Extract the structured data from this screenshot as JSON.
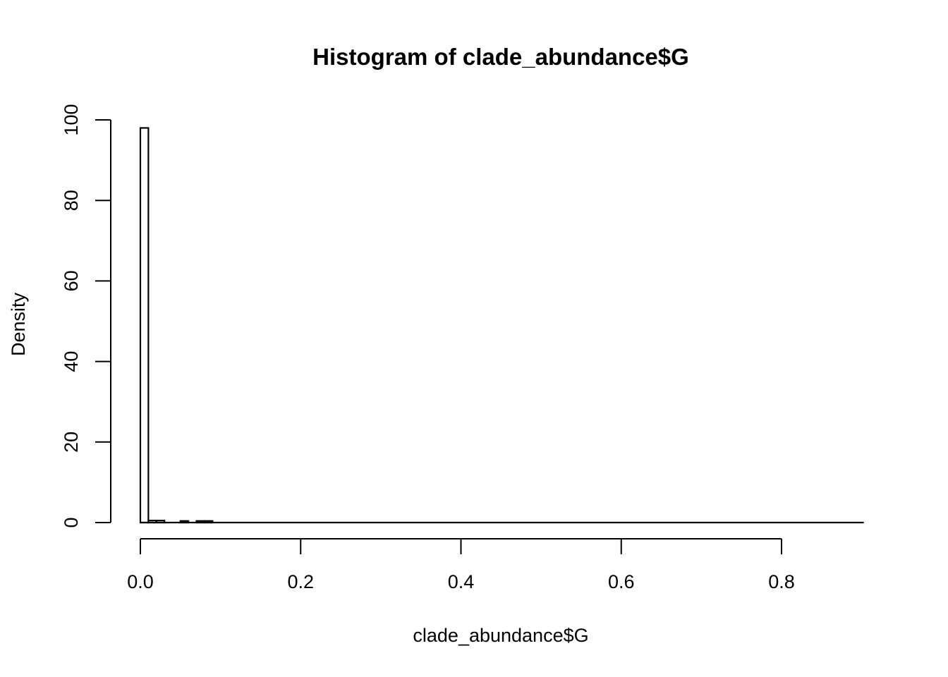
{
  "chart_data": {
    "type": "bar",
    "title": "Histogram of clade_abundance$G",
    "xlabel": "clade_abundance$G",
    "ylabel": "Density",
    "bin_width": 0.01,
    "bins": [
      {
        "x0": 0.0,
        "x1": 0.01,
        "density": 98.0
      },
      {
        "x0": 0.01,
        "x1": 0.02,
        "density": 0.5
      },
      {
        "x0": 0.02,
        "x1": 0.03,
        "density": 0.5
      },
      {
        "x0": 0.03,
        "x1": 0.04,
        "density": 0.0
      },
      {
        "x0": 0.04,
        "x1": 0.05,
        "density": 0.0
      },
      {
        "x0": 0.05,
        "x1": 0.06,
        "density": 0.4
      },
      {
        "x0": 0.06,
        "x1": 0.07,
        "density": 0.0
      },
      {
        "x0": 0.07,
        "x1": 0.08,
        "density": 0.4
      },
      {
        "x0": 0.08,
        "x1": 0.09,
        "density": 0.4
      },
      {
        "x0": 0.09,
        "x1": 0.9,
        "density": 0.0
      }
    ],
    "xlim": [
      0,
      0.9
    ],
    "ylim": [
      0,
      100
    ],
    "x_ticks": [
      {
        "value": 0.0,
        "label": "0.0"
      },
      {
        "value": 0.2,
        "label": "0.2"
      },
      {
        "value": 0.4,
        "label": "0.4"
      },
      {
        "value": 0.6,
        "label": "0.6"
      },
      {
        "value": 0.8,
        "label": "0.8"
      }
    ],
    "y_ticks": [
      {
        "value": 0,
        "label": "0"
      },
      {
        "value": 20,
        "label": "20"
      },
      {
        "value": 40,
        "label": "40"
      },
      {
        "value": 60,
        "label": "60"
      },
      {
        "value": 80,
        "label": "80"
      },
      {
        "value": 100,
        "label": "100"
      }
    ],
    "grid": false,
    "bar_fill": "#ffffff",
    "bar_stroke": "#000000"
  }
}
